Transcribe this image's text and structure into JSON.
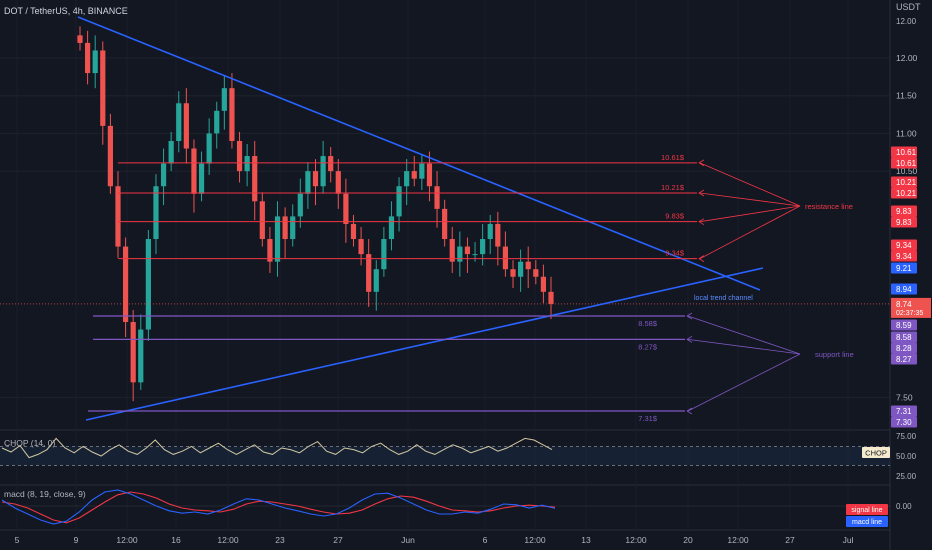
{
  "header": {
    "symbol_title": "DOT / TetherUS, 4h, BINANCE",
    "currency": "USDT"
  },
  "colors": {
    "background": "#131722",
    "up": "#26a69a",
    "down": "#ef5350",
    "trend": "#2962ff",
    "resistance": "#f23645",
    "support": "#7e57c2",
    "chop": "#d1c7a3",
    "signal": "#f23645",
    "macd": "#2962ff"
  },
  "chart_data": [
    {
      "type": "candlestick",
      "title": "DOT / TetherUS, 4h, BINANCE",
      "y_unit": "USDT",
      "ylim": [
        7.2,
        12.75
      ],
      "price_ticks": [
        "12.00",
        "11.50",
        "11.00",
        "10.50",
        "7.50"
      ],
      "x_tick_labels": [
        "5",
        "9",
        "12:00",
        "16",
        "12:00",
        "23",
        "27",
        "Jun",
        "6",
        "12:00",
        "13",
        "12:00",
        "20",
        "12:00",
        "27",
        "Jul"
      ],
      "approx_candles_close": [
        12.2,
        11.8,
        12.1,
        11.1,
        10.3,
        9.5,
        8.5,
        7.7,
        8.4,
        9.6,
        10.3,
        10.6,
        10.9,
        11.4,
        10.8,
        10.2,
        10.6,
        11.0,
        11.3,
        11.6,
        10.9,
        10.5,
        10.7,
        10.1,
        9.6,
        9.3,
        9.9,
        9.6,
        9.9,
        10.2,
        10.5,
        10.3,
        10.7,
        10.5,
        10.2,
        9.8,
        9.6,
        9.4,
        8.9,
        9.2,
        9.6,
        9.9,
        10.3,
        10.5,
        10.4,
        10.6,
        10.3,
        10.0,
        9.6,
        9.3,
        9.5,
        9.4,
        9.4,
        9.6,
        9.8,
        9.5,
        9.2,
        9.1,
        9.3,
        9.2,
        9.1,
        8.9,
        8.74
      ],
      "last_price": "8.74",
      "countdown": "02:37:35",
      "price_labels": [
        {
          "value": "10.61",
          "kind": "resistance"
        },
        {
          "value": "10.61",
          "kind": "resistance"
        },
        {
          "value": "10.21",
          "kind": "resistance"
        },
        {
          "value": "10.21",
          "kind": "resistance"
        },
        {
          "value": "9.83",
          "kind": "resistance"
        },
        {
          "value": "9.83",
          "kind": "resistance"
        },
        {
          "value": "9.34",
          "kind": "resistance"
        },
        {
          "value": "9.34",
          "kind": "resistance"
        },
        {
          "value": "9.21",
          "kind": "trend"
        },
        {
          "value": "8.94",
          "kind": "trend"
        },
        {
          "value": "8.59",
          "kind": "support"
        },
        {
          "value": "8.58",
          "kind": "support"
        },
        {
          "value": "8.28",
          "kind": "support"
        },
        {
          "value": "8.27",
          "kind": "support"
        },
        {
          "value": "7.31",
          "kind": "support"
        },
        {
          "value": "7.30",
          "kind": "support"
        }
      ],
      "resistance_levels": [
        {
          "price": 10.61,
          "label": "10.61$"
        },
        {
          "price": 10.21,
          "label": "10.21$"
        },
        {
          "price": 9.83,
          "label": "9.83$"
        },
        {
          "price": 9.34,
          "label": "9.34$"
        }
      ],
      "support_levels": [
        {
          "price": 8.58,
          "label": "8.58$"
        },
        {
          "price": 8.27,
          "label": "8.27$"
        },
        {
          "price": 7.31,
          "label": "7.31$"
        }
      ],
      "annotations": {
        "resistance": "resistance line",
        "support": "support line",
        "channel": "local trend channel"
      }
    },
    {
      "type": "line",
      "title": "CHOP (14, 0)",
      "badge": "CHOP",
      "y_ticks": [
        "75.00",
        "50.00",
        "25.00"
      ],
      "values": [
        60,
        55,
        63,
        48,
        52,
        58,
        72,
        60,
        54,
        62,
        55,
        50,
        58,
        64,
        56,
        52,
        60,
        70,
        58,
        52,
        56,
        62,
        54,
        60,
        66,
        58,
        52,
        58,
        64,
        55,
        52,
        60,
        58,
        54,
        62,
        68,
        56,
        52,
        60,
        58,
        54,
        62,
        66,
        58,
        52,
        56,
        64,
        56,
        52,
        58,
        64,
        60,
        54,
        58,
        62,
        56,
        60,
        66,
        72,
        70,
        64,
        58
      ]
    },
    {
      "type": "line",
      "title": "macd (8, 19, close, 9)",
      "y_ticks": [
        "0.00"
      ],
      "series": [
        {
          "name": "signal line",
          "values": [
            0.1,
            0.05,
            -0.05,
            -0.2,
            -0.35,
            -0.42,
            -0.3,
            -0.1,
            0.1,
            0.28,
            0.35,
            0.3,
            0.2,
            0.05,
            -0.05,
            -0.1,
            -0.12,
            -0.15,
            -0.08,
            0.05,
            0.12,
            0.1,
            0.05,
            0.0,
            -0.08,
            -0.15,
            -0.2,
            -0.18,
            -0.1,
            0.05,
            0.18,
            0.25,
            0.22,
            0.12,
            0.0,
            -0.1,
            -0.12,
            -0.15,
            -0.12,
            -0.05,
            0.0,
            0.02,
            0.0,
            -0.03
          ]
        },
        {
          "name": "macd line",
          "values": [
            0.15,
            -0.05,
            -0.2,
            -0.35,
            -0.45,
            -0.38,
            -0.15,
            0.15,
            0.35,
            0.4,
            0.3,
            0.15,
            0.0,
            -0.12,
            -0.18,
            -0.15,
            -0.2,
            -0.1,
            0.05,
            0.18,
            0.15,
            0.05,
            -0.05,
            -0.12,
            -0.2,
            -0.25,
            -0.2,
            -0.05,
            0.15,
            0.3,
            0.32,
            0.2,
            0.05,
            -0.1,
            -0.2,
            -0.2,
            -0.15,
            -0.18,
            -0.08,
            0.05,
            0.03,
            -0.05,
            0.02,
            -0.06
          ]
        }
      ]
    }
  ]
}
